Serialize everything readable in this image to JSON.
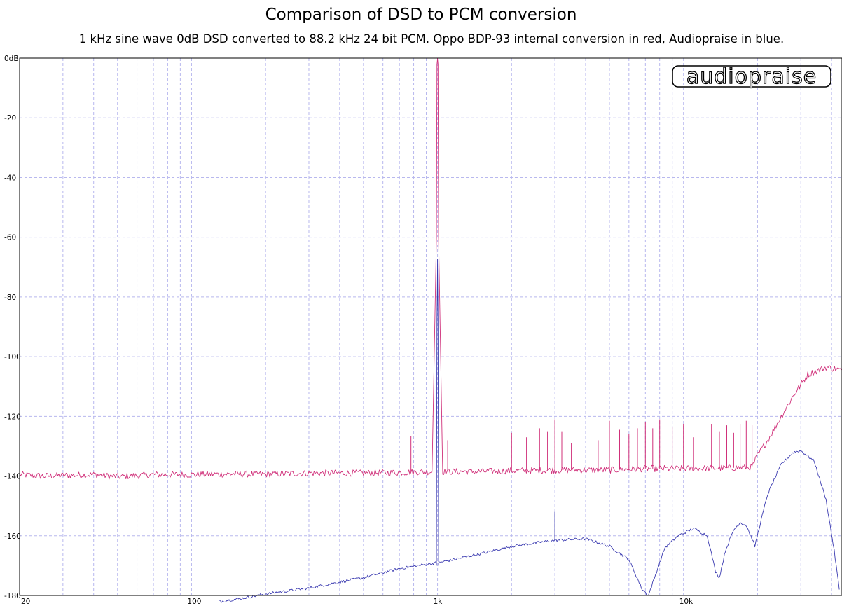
{
  "chart_data": {
    "type": "line",
    "title": "Comparison of DSD to PCM conversion",
    "subtitle": "1 kHz sine wave 0dB DSD converted to 88.2 kHz 24 bit PCM. Oppo BDP-93 internal conversion in red, Audiopraise in blue.",
    "xlabel": "",
    "ylabel": "",
    "x_scale": "log",
    "xlim": [
      20,
      44100
    ],
    "ylim": [
      -180,
      0
    ],
    "x_ticks": [
      {
        "value": 20,
        "label": "20"
      },
      {
        "value": 100,
        "label": "100"
      },
      {
        "value": 1000,
        "label": "1k"
      },
      {
        "value": 10000,
        "label": "10k"
      }
    ],
    "y_ticks": [
      {
        "value": 0,
        "label": "0dB"
      },
      {
        "value": -20,
        "label": "-20"
      },
      {
        "value": -40,
        "label": "-40"
      },
      {
        "value": -60,
        "label": "-60"
      },
      {
        "value": -80,
        "label": "-80"
      },
      {
        "value": -100,
        "label": "-100"
      },
      {
        "value": -120,
        "label": "-120"
      },
      {
        "value": -140,
        "label": "-140"
      },
      {
        "value": -160,
        "label": "-160"
      },
      {
        "value": -180,
        "label": "-180"
      }
    ],
    "grid": true,
    "logo_text": "audiopraise",
    "series": [
      {
        "name": "",
        "color": "#d0307a",
        "points": [
          [
            20,
            -139.5
          ],
          [
            25,
            -140
          ],
          [
            30,
            -139.8
          ],
          [
            40,
            -139.5
          ],
          [
            50,
            -140.2
          ],
          [
            70,
            -139.5
          ],
          [
            100,
            -139.5
          ],
          [
            150,
            -139.3
          ],
          [
            200,
            -139.4
          ],
          [
            300,
            -139
          ],
          [
            500,
            -139
          ],
          [
            700,
            -138.8
          ],
          [
            950,
            -138.5
          ],
          [
            990,
            -60
          ],
          [
            995,
            -2
          ],
          [
            1000,
            0
          ],
          [
            1005,
            -2
          ],
          [
            1010,
            -60
          ],
          [
            1050,
            -138.5
          ],
          [
            1500,
            -138.5
          ],
          [
            2000,
            -138.2
          ],
          [
            3000,
            -138
          ],
          [
            5000,
            -138
          ],
          [
            7000,
            -137.5
          ],
          [
            10000,
            -137.5
          ],
          [
            15000,
            -137.3
          ],
          [
            19000,
            -137
          ],
          [
            20000,
            -133
          ],
          [
            22000,
            -128
          ],
          [
            25000,
            -120
          ],
          [
            28000,
            -113
          ],
          [
            32000,
            -106
          ],
          [
            38000,
            -103.5
          ],
          [
            44100,
            -104.5
          ]
        ],
        "spikes": [
          [
            780,
            -126.5
          ],
          [
            1100,
            -128
          ],
          [
            2000,
            -125.5
          ],
          [
            2300,
            -127
          ],
          [
            2600,
            -124
          ],
          [
            2800,
            -125
          ],
          [
            3000,
            -121
          ],
          [
            3200,
            -125
          ],
          [
            3500,
            -129
          ],
          [
            4500,
            -128
          ],
          [
            5000,
            -121.5
          ],
          [
            5500,
            -124.5
          ],
          [
            6000,
            -126
          ],
          [
            6500,
            -124
          ],
          [
            7000,
            -122
          ],
          [
            7500,
            -124
          ],
          [
            8000,
            -121
          ],
          [
            9000,
            -123.5
          ],
          [
            10000,
            -122.5
          ],
          [
            11000,
            -127
          ],
          [
            12000,
            -125
          ],
          [
            13000,
            -122.5
          ],
          [
            14000,
            -125
          ],
          [
            15000,
            -123
          ],
          [
            16000,
            -125.5
          ],
          [
            17000,
            -122.5
          ],
          [
            18000,
            -121.5
          ],
          [
            19000,
            -123
          ]
        ],
        "noise": 2.2
      },
      {
        "name": "",
        "color": "#3a3ab0",
        "points": [
          [
            130,
            -182
          ],
          [
            160,
            -181
          ],
          [
            200,
            -179.5
          ],
          [
            300,
            -177.5
          ],
          [
            500,
            -174
          ],
          [
            700,
            -171
          ],
          [
            990,
            -169
          ],
          [
            995,
            -88
          ],
          [
            998,
            -77
          ],
          [
            1000,
            -67
          ],
          [
            1002,
            -77
          ],
          [
            1005,
            -88
          ],
          [
            1010,
            -169
          ],
          [
            1500,
            -166
          ],
          [
            2000,
            -163.5
          ],
          [
            3000,
            -161.5
          ],
          [
            4000,
            -161
          ],
          [
            5000,
            -163.5
          ],
          [
            6000,
            -168
          ],
          [
            6800,
            -178
          ],
          [
            7200,
            -180
          ],
          [
            7700,
            -173
          ],
          [
            8400,
            -164
          ],
          [
            9500,
            -160
          ],
          [
            11000,
            -157.5
          ],
          [
            12500,
            -160
          ],
          [
            13500,
            -172
          ],
          [
            14000,
            -174
          ],
          [
            14800,
            -165
          ],
          [
            16000,
            -158
          ],
          [
            17000,
            -155.5
          ],
          [
            18000,
            -156.5
          ],
          [
            19000,
            -161
          ],
          [
            19500,
            -163.5
          ],
          [
            20500,
            -156
          ],
          [
            22000,
            -146
          ],
          [
            25000,
            -136
          ],
          [
            28000,
            -132
          ],
          [
            30000,
            -131.5
          ],
          [
            34000,
            -135
          ],
          [
            38000,
            -148
          ],
          [
            41000,
            -165
          ],
          [
            43000,
            -178
          ]
        ],
        "spikes": [
          [
            3000,
            -152
          ],
          [
            990,
            -170
          ],
          [
            1010,
            -170
          ]
        ],
        "noise": 0.9
      }
    ]
  }
}
